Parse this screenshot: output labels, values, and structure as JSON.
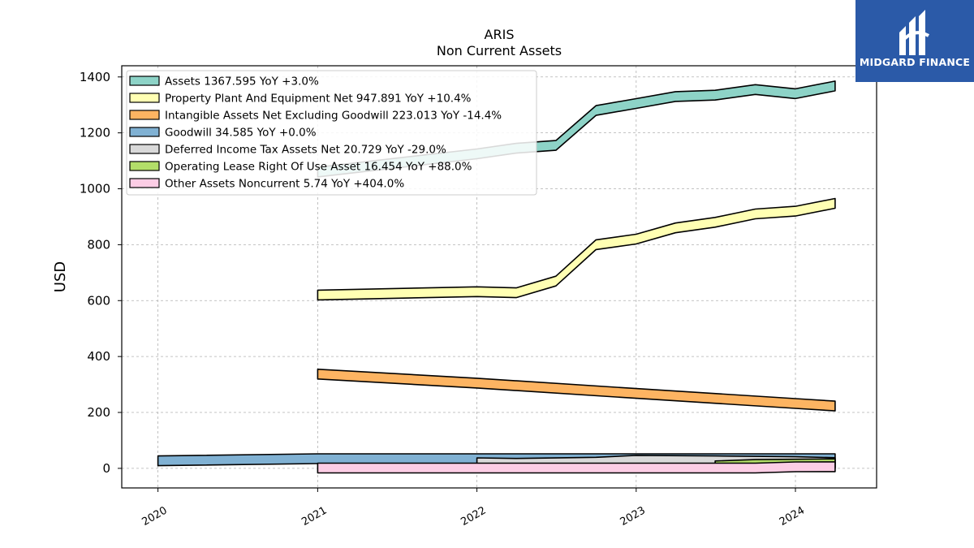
{
  "logo": {
    "text": "MIDGARD FINANCE"
  },
  "chart_data": {
    "type": "area",
    "title": "ARIS",
    "subtitle": "Non Current  Assets",
    "xlabel": "",
    "ylabel": "USD",
    "xlim": [
      "2019-10-10",
      "2024-07-05"
    ],
    "ylim": [
      -70,
      1440
    ],
    "x_ticks": [
      "2020",
      "2021",
      "2022",
      "2023",
      "2024"
    ],
    "y_ticks": [
      0,
      200,
      400,
      600,
      800,
      1000,
      1200,
      1400
    ],
    "grid": true,
    "legend_position": "top-left",
    "series": [
      {
        "name": "Assets  1367.595 YoY +3.0%",
        "color": "#8dd3c7",
        "x": [
          "2021-01-01",
          "2022-01-01",
          "2022-04-01",
          "2022-07-01",
          "2022-10-01",
          "2023-01-01",
          "2023-04-01",
          "2023-07-01",
          "2023-10-01",
          "2024-01-01",
          "2024-04-01"
        ],
        "values": [
          1060,
          1125,
          1145,
          1155,
          1280,
          1305,
          1330,
          1335,
          1355,
          1340,
          1367.595
        ]
      },
      {
        "name": "Property Plant And Equipment Net  947.891 YoY +10.4%",
        "color": "#ffffb3",
        "x": [
          "2021-01-01",
          "2022-01-01",
          "2022-04-01",
          "2022-07-01",
          "2022-10-01",
          "2023-01-01",
          "2023-04-01",
          "2023-07-01",
          "2023-10-01",
          "2024-01-01",
          "2024-04-01"
        ],
        "values": [
          620,
          632,
          628,
          670,
          800,
          820,
          860,
          880,
          910,
          920,
          947.891
        ]
      },
      {
        "name": "Intangible Assets Net Excluding Goodwill  223.013 YoY -14.4%",
        "color": "#fdb462",
        "x": [
          "2021-01-01",
          "2022-01-01",
          "2023-01-01",
          "2024-01-01",
          "2024-04-01"
        ],
        "values": [
          337,
          305,
          268,
          232,
          223.013
        ]
      },
      {
        "name": "Goodwill  34.585 YoY +0.0%",
        "color": "#80b1d3",
        "x": [
          "2020-01-01",
          "2021-01-01",
          "2022-01-01",
          "2023-01-01",
          "2024-01-01",
          "2024-04-01"
        ],
        "values": [
          27,
          34.585,
          34.585,
          34.585,
          34.585,
          34.585
        ]
      },
      {
        "name": "Deferred Income Tax Assets Net  20.729 YoY -29.0%",
        "color": "#d9d9d9",
        "x": [
          "2022-01-01",
          "2022-04-01",
          "2022-10-01",
          "2023-01-01",
          "2023-07-01",
          "2024-01-01",
          "2024-04-01"
        ],
        "values": [
          20,
          18,
          22,
          29,
          27,
          24,
          20.729
        ]
      },
      {
        "name": "Operating Lease Right Of Use Asset  16.454 YoY +88.0%",
        "color": "#b3de69",
        "x": [
          "2023-07-01",
          "2023-10-01",
          "2024-01-01",
          "2024-04-01"
        ],
        "values": [
          9,
          14,
          15,
          16.454
        ]
      },
      {
        "name": "Other Assets Noncurrent  5.74 YoY +404.0%",
        "color": "#fccde5",
        "x": [
          "2021-01-01",
          "2022-01-01",
          "2023-01-01",
          "2023-10-01",
          "2024-01-01",
          "2024-04-01"
        ],
        "values": [
          1.1,
          1.2,
          1.1,
          1.1,
          5.5,
          5.74
        ]
      }
    ]
  }
}
